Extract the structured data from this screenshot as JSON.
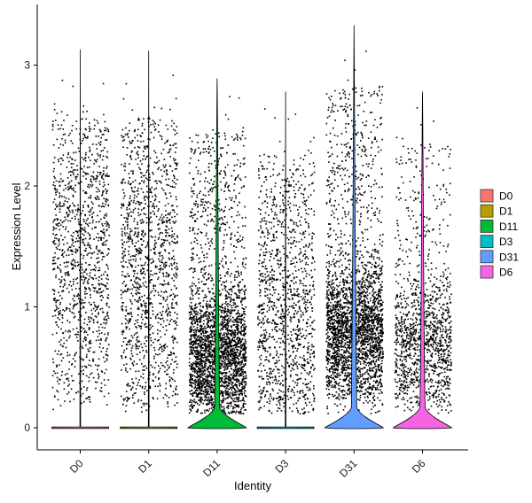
{
  "chart_data": {
    "type": "violin",
    "title": "",
    "xlabel": "Identity",
    "ylabel": "Expression Level",
    "categories": [
      "D0",
      "D1",
      "D11",
      "D3",
      "D31",
      "D6"
    ],
    "ylim": [
      -0.2,
      3.45
    ],
    "yticks": [
      0,
      1,
      2,
      3
    ],
    "grid": false,
    "legend_position": "right",
    "legend_title": "",
    "series": [
      {
        "name": "D0",
        "color": "#F8766D",
        "max": 3.13,
        "zero_density": "thin",
        "dense_level": 1.4,
        "approx_points": 1200
      },
      {
        "name": "D1",
        "color": "#B79F00",
        "max": 3.12,
        "zero_density": "thin",
        "dense_level": 1.3,
        "approx_points": 1300
      },
      {
        "name": "D11",
        "color": "#00BA38",
        "max": 2.89,
        "zero_density": "wide",
        "dense_level": 0.6,
        "approx_points": 3200
      },
      {
        "name": "D3",
        "color": "#00BFC4",
        "max": 2.78,
        "zero_density": "thin",
        "dense_level": 0.9,
        "approx_points": 1200
      },
      {
        "name": "D31",
        "color": "#619CFF",
        "max": 3.33,
        "zero_density": "wide",
        "dense_level": 0.8,
        "approx_points": 3000
      },
      {
        "name": "D6",
        "color": "#F564E3",
        "max": 2.78,
        "zero_density": "wide",
        "dense_level": 0.7,
        "approx_points": 1300
      }
    ]
  }
}
